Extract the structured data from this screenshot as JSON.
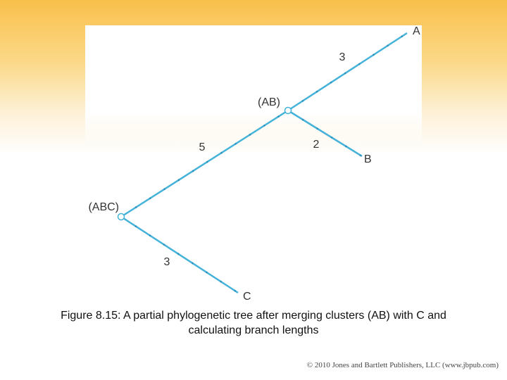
{
  "tree": {
    "nodes": [
      {
        "label": "A"
      },
      {
        "label": "(AB)"
      },
      {
        "label": "B"
      },
      {
        "label": "(ABC)"
      },
      {
        "label": "C"
      }
    ],
    "branch_lengths": [
      {
        "label": "3"
      },
      {
        "label": "2"
      },
      {
        "label": "5"
      },
      {
        "label": "3"
      }
    ]
  },
  "caption": "Figure 8.15: A partial phylogenetic tree after merging clusters (AB) with C and calculating branch lengths",
  "footer": {
    "copyright": "© 2010 Jones and Bartlett Publishers, LLC (www.jbpub.com)"
  }
}
